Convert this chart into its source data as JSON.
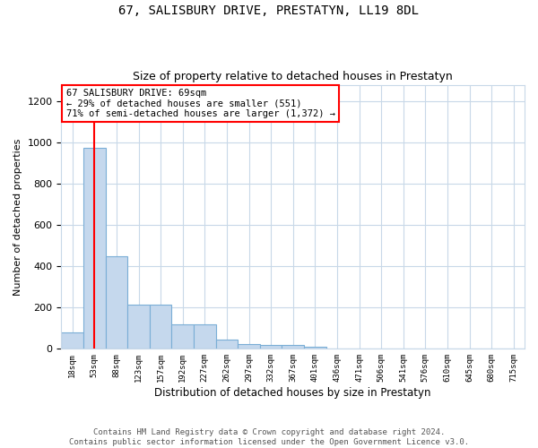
{
  "title": "67, SALISBURY DRIVE, PRESTATYN, LL19 8DL",
  "subtitle": "Size of property relative to detached houses in Prestatyn",
  "xlabel": "Distribution of detached houses by size in Prestatyn",
  "ylabel": "Number of detached properties",
  "bar_labels": [
    "18sqm",
    "53sqm",
    "88sqm",
    "123sqm",
    "157sqm",
    "192sqm",
    "227sqm",
    "262sqm",
    "297sqm",
    "332sqm",
    "367sqm",
    "401sqm",
    "436sqm",
    "471sqm",
    "506sqm",
    "541sqm",
    "576sqm",
    "610sqm",
    "645sqm",
    "680sqm",
    "715sqm"
  ],
  "bar_values": [
    80,
    975,
    450,
    215,
    215,
    120,
    120,
    45,
    25,
    20,
    20,
    10,
    0,
    0,
    0,
    0,
    0,
    0,
    0,
    0,
    0
  ],
  "bar_color": "#c5d8ed",
  "bar_edgecolor": "#7aaed6",
  "vline_x": 1.0,
  "vline_color": "red",
  "annotation_text": "67 SALISBURY DRIVE: 69sqm\n← 29% of detached houses are smaller (551)\n71% of semi-detached houses are larger (1,372) →",
  "annotation_box_edgecolor": "red",
  "annotation_box_facecolor": "white",
  "ylim": [
    0,
    1280
  ],
  "yticks": [
    0,
    200,
    400,
    600,
    800,
    1000,
    1200
  ],
  "footer": "Contains HM Land Registry data © Crown copyright and database right 2024.\nContains public sector information licensed under the Open Government Licence v3.0.",
  "plot_background": "white",
  "grid_color": "#c8d8e8",
  "title_fontsize": 10,
  "subtitle_fontsize": 9,
  "ylabel_fontsize": 8,
  "xlabel_fontsize": 8.5,
  "annotation_fontsize": 7.5
}
